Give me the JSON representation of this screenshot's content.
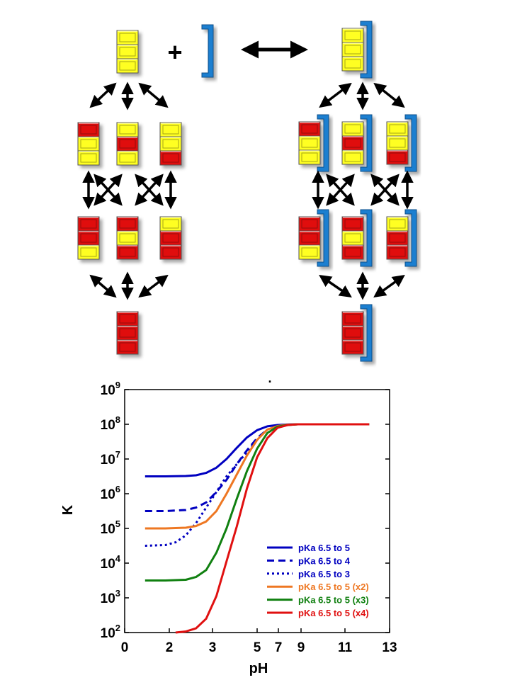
{
  "diagram": {
    "plus_symbol": "+",
    "colors": {
      "protonated": "#e01010",
      "deprotonated": "#ffff20",
      "receptor": "#1e7fd0",
      "arrow": "#000000"
    },
    "free_states": [
      [
        "Y",
        "Y",
        "Y"
      ],
      [
        "R",
        "Y",
        "Y"
      ],
      [
        "Y",
        "R",
        "Y"
      ],
      [
        "Y",
        "Y",
        "R"
      ],
      [
        "R",
        "R",
        "Y"
      ],
      [
        "R",
        "Y",
        "R"
      ],
      [
        "Y",
        "R",
        "R"
      ],
      [
        "R",
        "R",
        "R"
      ]
    ],
    "bound_states": [
      [
        "Y",
        "Y",
        "Y"
      ],
      [
        "R",
        "Y",
        "Y"
      ],
      [
        "Y",
        "R",
        "Y"
      ],
      [
        "Y",
        "Y",
        "R"
      ],
      [
        "R",
        "R",
        "Y"
      ],
      [
        "R",
        "Y",
        "R"
      ],
      [
        "Y",
        "R",
        "R"
      ],
      [
        "R",
        "R",
        "R"
      ]
    ]
  },
  "chart_data": {
    "type": "line",
    "title": ".",
    "xlabel": "pH",
    "ylabel": "K",
    "xlim": [
      0,
      13
    ],
    "ylim_log10": [
      2,
      9
    ],
    "y_scale": "log",
    "x_ticks": [
      "0",
      "2",
      "3",
      "5",
      "7",
      "9",
      "11",
      "13"
    ],
    "y_ticks": [
      {
        "base": "10",
        "exp": "9"
      },
      {
        "base": "10",
        "exp": "8"
      },
      {
        "base": "10",
        "exp": "7"
      },
      {
        "base": "10",
        "exp": "6"
      },
      {
        "base": "10",
        "exp": "5"
      },
      {
        "base": "10",
        "exp": "4"
      },
      {
        "base": "10",
        "exp": "3"
      },
      {
        "base": "10",
        "exp": "2"
      }
    ],
    "legend_position": "bottom-right",
    "series": [
      {
        "name": "pKa 6.5 to 5",
        "color": "#0000c0",
        "dash": "solid",
        "x": [
          1,
          2,
          3,
          3.5,
          4,
          4.5,
          5,
          5.5,
          6,
          6.5,
          7,
          7.5,
          8,
          8.5,
          9,
          10,
          12
        ],
        "log10y": [
          6.5,
          6.5,
          6.51,
          6.53,
          6.6,
          6.75,
          7.0,
          7.32,
          7.62,
          7.83,
          7.94,
          7.98,
          7.995,
          8.0,
          8.0,
          8.0,
          8.0
        ]
      },
      {
        "name": "pKa 6.5 to 4",
        "color": "#0000c0",
        "dash": "dashed",
        "x": [
          1,
          2,
          3,
          3.5,
          4,
          4.5,
          5,
          5.5,
          6,
          6.5,
          7
        ],
        "log10y": [
          5.5,
          5.5,
          5.53,
          5.6,
          5.75,
          6.05,
          6.4,
          6.85,
          7.25,
          7.6,
          7.85
        ]
      },
      {
        "name": "pKa 6.5 to 3",
        "color": "#0000c0",
        "dash": "dotted",
        "x": [
          1,
          2,
          2.5,
          3,
          3.5,
          4,
          4.5,
          5,
          5.5,
          6,
          6.5
        ],
        "log10y": [
          4.5,
          4.52,
          4.6,
          4.8,
          5.15,
          5.6,
          6.05,
          6.5,
          6.85,
          7.2,
          7.55
        ]
      },
      {
        "name": "pKa 6.5 to 5 (x2)",
        "color": "#ee7722",
        "dash": "solid",
        "x": [
          1,
          2,
          3,
          3.5,
          4,
          4.5,
          5,
          5.5,
          6,
          6.5,
          7,
          7.5,
          8,
          8.5,
          9,
          12
        ],
        "log10y": [
          5.0,
          5.0,
          5.02,
          5.07,
          5.2,
          5.5,
          6.0,
          6.55,
          7.1,
          7.55,
          7.85,
          7.95,
          7.99,
          8.0,
          8.0,
          8.0
        ]
      },
      {
        "name": "pKa 6.5 to 5 (x3)",
        "color": "#108010",
        "dash": "solid",
        "x": [
          1,
          2,
          3,
          3.5,
          4,
          4.5,
          5,
          5.5,
          6,
          6.5,
          7,
          7.5,
          8,
          8.5,
          9,
          12
        ],
        "log10y": [
          3.5,
          3.5,
          3.52,
          3.6,
          3.8,
          4.3,
          5.0,
          5.85,
          6.65,
          7.3,
          7.75,
          7.93,
          7.98,
          8.0,
          8.0,
          8.0
        ]
      },
      {
        "name": "pKa 6.5 to 5 (x4)",
        "color": "#e01010",
        "dash": "solid",
        "x": [
          2.5,
          3,
          3.5,
          4,
          4.5,
          5,
          5.5,
          6,
          6.5,
          7,
          7.5,
          8,
          8.5,
          9,
          12
        ],
        "log10y": [
          2.0,
          2.03,
          2.12,
          2.4,
          3.05,
          4.05,
          5.05,
          6.15,
          7.05,
          7.6,
          7.9,
          7.98,
          8.0,
          8.0,
          8.0
        ]
      }
    ]
  }
}
